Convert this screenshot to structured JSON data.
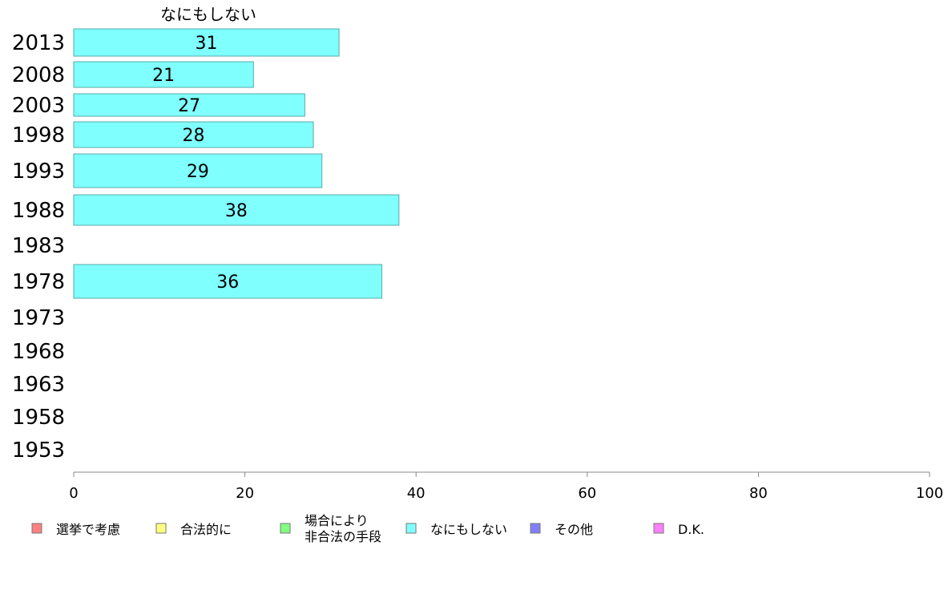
{
  "chart_data": {
    "type": "bar",
    "orientation": "horizontal",
    "series_title": "なにもしない",
    "categories": [
      "2013",
      "2008",
      "2003",
      "1998",
      "1993",
      "1988",
      "1983",
      "1978",
      "1973",
      "1968",
      "1963",
      "1958",
      "1953"
    ],
    "series": [
      {
        "name": "なにもしない",
        "color": "#80ffff",
        "values": [
          31,
          21,
          27,
          28,
          29,
          38,
          null,
          36,
          null,
          null,
          null,
          null,
          null
        ]
      }
    ],
    "xlim": [
      0,
      100
    ],
    "xticks": [
      0,
      20,
      40,
      60,
      80,
      100
    ],
    "legend_position": "bottom",
    "legend": [
      {
        "label": "選挙で考慮",
        "color": "#ff8080"
      },
      {
        "label": "合法的に",
        "color": "#ffff80"
      },
      {
        "label": "場合により\n非合法の手段",
        "color": "#80ff80"
      },
      {
        "label": "なにもしない",
        "color": "#80ffff"
      },
      {
        "label": "その他",
        "color": "#8080ff"
      },
      {
        "label": "D.K.",
        "color": "#ff80ff"
      }
    ]
  }
}
